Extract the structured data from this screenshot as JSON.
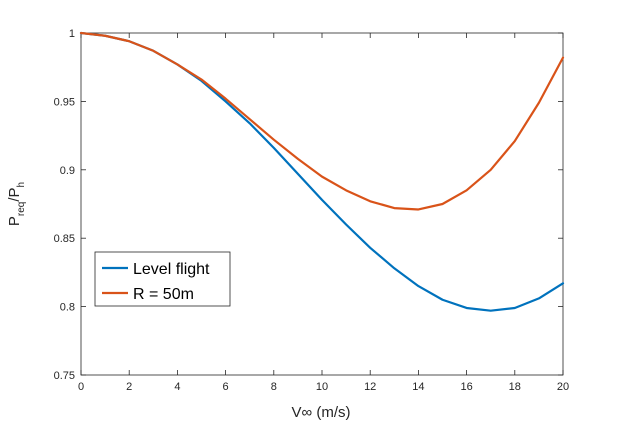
{
  "chart_data": {
    "type": "line",
    "title": "",
    "xlabel": "V∞ (m/s)",
    "ylabel_main": "P",
    "ylabel_sub1": "req",
    "ylabel_mid": "/P",
    "ylabel_sub2": "h",
    "xlim": [
      0,
      20
    ],
    "ylim": [
      0.75,
      1
    ],
    "xticks": [
      0,
      2,
      4,
      6,
      8,
      10,
      12,
      14,
      16,
      18,
      20
    ],
    "xtick_labels": [
      "0",
      "2",
      "4",
      "6",
      "8",
      "10",
      "12",
      "14",
      "16",
      "18",
      "20"
    ],
    "yticks": [
      0.75,
      0.8,
      0.85,
      0.9,
      0.95,
      1
    ],
    "ytick_labels": [
      "0.75",
      "0.8",
      "0.85",
      "0.9",
      "0.95",
      "1"
    ],
    "grid": false,
    "legend_position": "bottom-left",
    "x": [
      0,
      1,
      2,
      3,
      4,
      5,
      6,
      7,
      8,
      9,
      10,
      11,
      12,
      13,
      14,
      15,
      16,
      17,
      18,
      19,
      20
    ],
    "series": [
      {
        "name": "Level flight",
        "color": "#0072BD",
        "values": [
          1.0,
          0.998,
          0.994,
          0.987,
          0.977,
          0.965,
          0.95,
          0.934,
          0.916,
          0.897,
          0.878,
          0.86,
          0.843,
          0.828,
          0.815,
          0.805,
          0.799,
          0.797,
          0.799,
          0.806,
          0.817
        ]
      },
      {
        "name": "R = 50m",
        "color": "#D95319",
        "values": [
          1.0,
          0.998,
          0.994,
          0.987,
          0.977,
          0.966,
          0.952,
          0.937,
          0.922,
          0.908,
          0.895,
          0.885,
          0.877,
          0.872,
          0.871,
          0.875,
          0.885,
          0.9,
          0.921,
          0.949,
          0.982
        ]
      }
    ]
  }
}
